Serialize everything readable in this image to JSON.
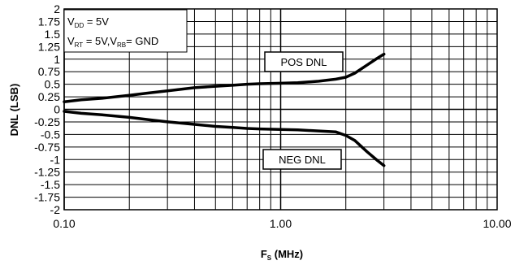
{
  "chart_data": {
    "type": "line",
    "xlabel": "F",
    "xlabel_sub": "S",
    "xlabel_unit": " (MHz)",
    "ylabel": "DNL (LSB)",
    "xscale": "log",
    "xlim": [
      0.1,
      10
    ],
    "ylim": [
      -2,
      2
    ],
    "grid": true,
    "x_ticks": [
      0.1,
      1,
      10
    ],
    "x_tick_labels": [
      "0.10",
      "1.00",
      "10.00"
    ],
    "y_ticks": [
      2,
      1.75,
      1.5,
      1.25,
      1,
      0.75,
      0.5,
      0.25,
      0,
      -0.25,
      -0.5,
      -0.75,
      -1,
      -1.25,
      -1.5,
      -1.75,
      -2
    ],
    "y_tick_labels": [
      "2",
      "1.75",
      "1.5",
      "1.25",
      "1",
      "0.75",
      "0.5",
      "0.25",
      "0",
      "-0.25",
      "-0.5",
      "-0.75",
      "-1",
      "-1.25",
      "-1.5",
      "-1.75",
      "-2"
    ],
    "annotation": {
      "line1": {
        "v": "V",
        "sub": "DD",
        "rest": " = 5V"
      },
      "line2": {
        "v1": "V",
        "sub1": "RT",
        "mid": " = 5V,V",
        "sub2": "RB",
        "rest": "= GND"
      }
    },
    "series": [
      {
        "name": "POS DNL",
        "x": [
          0.1,
          0.12,
          0.15,
          0.2,
          0.25,
          0.3,
          0.4,
          0.5,
          0.6,
          0.7,
          0.8,
          1.0,
          1.2,
          1.5,
          1.8,
          2.0,
          2.2,
          2.5,
          2.8,
          3.0
        ],
        "y": [
          0.15,
          0.19,
          0.22,
          0.28,
          0.33,
          0.37,
          0.43,
          0.46,
          0.48,
          0.5,
          0.51,
          0.52,
          0.53,
          0.56,
          0.6,
          0.64,
          0.72,
          0.88,
          1.02,
          1.1
        ]
      },
      {
        "name": "NEG DNL",
        "x": [
          0.1,
          0.12,
          0.15,
          0.2,
          0.25,
          0.3,
          0.4,
          0.5,
          0.6,
          0.7,
          0.8,
          1.0,
          1.2,
          1.5,
          1.8,
          2.0,
          2.2,
          2.5,
          2.8,
          3.0
        ],
        "y": [
          -0.04,
          -0.08,
          -0.11,
          -0.16,
          -0.21,
          -0.25,
          -0.3,
          -0.34,
          -0.36,
          -0.38,
          -0.39,
          -0.4,
          -0.41,
          -0.43,
          -0.45,
          -0.52,
          -0.62,
          -0.84,
          -1.02,
          -1.12
        ]
      }
    ],
    "colors": {
      "line": "#000000",
      "grid": "#000000",
      "background": "#ffffff"
    }
  }
}
